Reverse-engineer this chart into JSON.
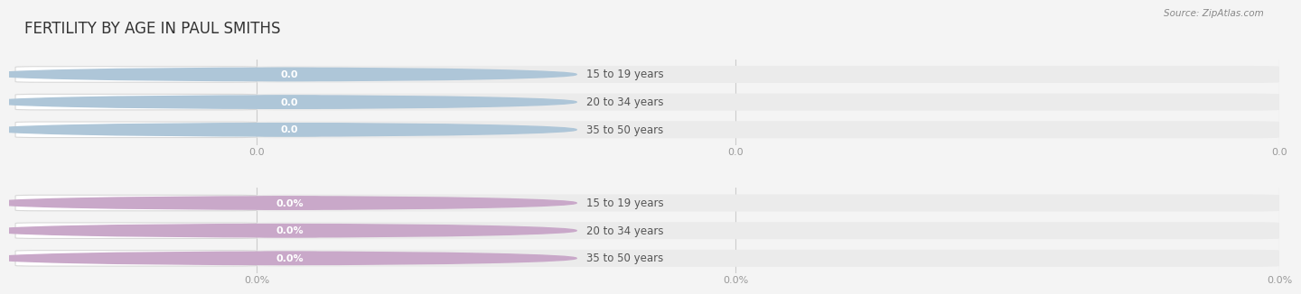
{
  "title": "FERTILITY BY AGE IN PAUL SMITHS",
  "source_text": "Source: ZipAtlas.com",
  "top_section": {
    "categories": [
      "15 to 19 years",
      "20 to 34 years",
      "35 to 50 years"
    ],
    "values": [
      0.0,
      0.0,
      0.0
    ],
    "bar_color": "#aec6d8",
    "value_badge_color": "#aec6d8",
    "tick_labels": [
      "0.0",
      "0.0",
      "0.0"
    ]
  },
  "bottom_section": {
    "categories": [
      "15 to 19 years",
      "20 to 34 years",
      "35 to 50 years"
    ],
    "values": [
      0.0,
      0.0,
      0.0
    ],
    "bar_color": "#c9a8c9",
    "value_badge_color": "#c9a8c9",
    "tick_labels": [
      "0.0%",
      "0.0%",
      "0.0%"
    ]
  },
  "bg_color": "#f4f4f4",
  "bar_bg_color": "#ebebeb",
  "bar_height": 0.62,
  "title_fontsize": 12,
  "label_fontsize": 8.5,
  "tick_fontsize": 8,
  "source_fontsize": 7.5
}
